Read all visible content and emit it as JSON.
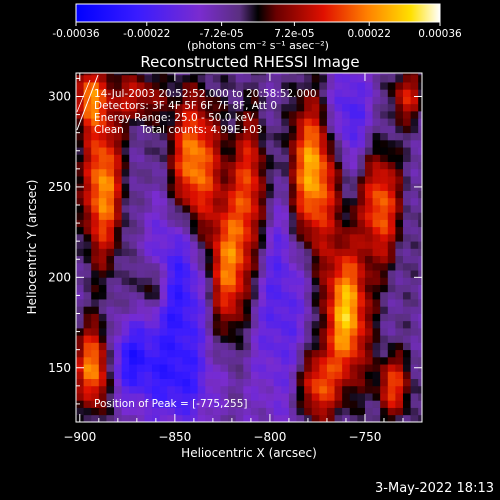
{
  "chart_data": {
    "type": "heatmap",
    "title": "Reconstructed RHESSI Image",
    "xlabel": "Heliocentric X (arcsec)",
    "ylabel": "Heliocentric Y (arcsec)",
    "xlim": [
      -902,
      -720
    ],
    "ylim": [
      120,
      313
    ],
    "x_ticks": [
      -900,
      -850,
      -800,
      -750
    ],
    "y_ticks": [
      150,
      200,
      250,
      300
    ],
    "colorbar": {
      "ticks": [
        "-0.00036",
        "-0.00022",
        "-7.2e-05",
        "7.2e-05",
        "0.00022",
        "0.00036"
      ],
      "tick_values": [
        -0.00036,
        -0.00022,
        -7.2e-05,
        7.2e-05,
        0.00022,
        0.00036
      ],
      "range": [
        -0.00036,
        0.00036
      ],
      "unit_label": "(photons cm⁻² s⁻¹ asec⁻²)"
    },
    "annotations": [
      "14-Jul-2003 20:52:52.000 to 20:58:52.000",
      "Detectors: 3F 4F 5F 6F 7F 8F, Att 0",
      "Energy Range: 25.0 - 50.0 keV",
      "Clean     Total counts: 4.99E+03"
    ],
    "peak_label": "Position of Peak = [-775,255]",
    "peak": {
      "x": -775,
      "y": 255
    },
    "sources": [
      {
        "x": -778,
        "y": 258,
        "sx": 9,
        "sy": 30,
        "amp": 0.00036
      },
      {
        "x": -840,
        "y": 262,
        "sx": 9,
        "sy": 26,
        "amp": 0.00032
      },
      {
        "x": -810,
        "y": 250,
        "sx": 7,
        "sy": 30,
        "amp": 0.00024
      },
      {
        "x": -822,
        "y": 205,
        "sx": 8,
        "sy": 26,
        "amp": 0.00028
      },
      {
        "x": -760,
        "y": 180,
        "sx": 8,
        "sy": 26,
        "amp": 0.00034
      },
      {
        "x": -742,
        "y": 240,
        "sx": 7,
        "sy": 22,
        "amp": 0.00026
      },
      {
        "x": -888,
        "y": 250,
        "sx": 7,
        "sy": 28,
        "amp": 0.0003
      },
      {
        "x": -895,
        "y": 300,
        "sx": 6,
        "sy": 12,
        "amp": 0.00024
      },
      {
        "x": -862,
        "y": 195,
        "sx": 6,
        "sy": 10,
        "amp": 0.00016
      },
      {
        "x": -775,
        "y": 140,
        "sx": 7,
        "sy": 14,
        "amp": 0.00024
      },
      {
        "x": -735,
        "y": 140,
        "sx": 6,
        "sy": 12,
        "amp": 0.00022
      },
      {
        "x": -893,
        "y": 150,
        "sx": 6,
        "sy": 16,
        "amp": 0.0003
      },
      {
        "x": -728,
        "y": 300,
        "sx": 6,
        "sy": 10,
        "amp": 0.00018
      },
      {
        "x": -870,
        "y": 300,
        "sx": 10,
        "sy": 10,
        "amp": 0.00016
      },
      {
        "x": -848,
        "y": 190,
        "sx": 12,
        "sy": 40,
        "amp": -0.0002
      },
      {
        "x": -795,
        "y": 200,
        "sx": 12,
        "sy": 55,
        "amp": -0.00014
      },
      {
        "x": -760,
        "y": 290,
        "sx": 10,
        "sy": 20,
        "amp": -0.00016
      },
      {
        "x": -850,
        "y": 140,
        "sx": 15,
        "sy": 15,
        "amp": -0.0001
      },
      {
        "x": -873,
        "y": 155,
        "sx": 8,
        "sy": 14,
        "amp": -0.00018
      }
    ],
    "background": -6e-05
  },
  "footer": {
    "date": "3-May-2022 18:13"
  }
}
